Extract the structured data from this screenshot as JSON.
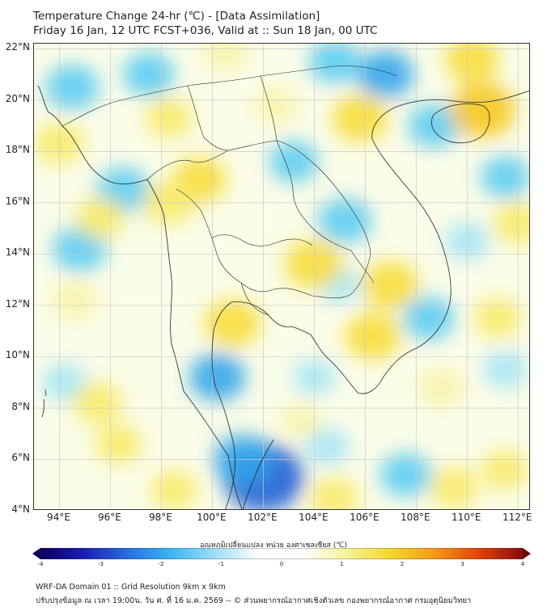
{
  "title_line1": "Temperature Change 24-hr (℃) - [Data Assimilation]",
  "title_line2": "Friday 16 Jan, 12 UTC FCST+036, Valid at :: Sun 18 Jan, 00 UTC",
  "lat_labels": [
    "22°N",
    "20°N",
    "18°N",
    "16°N",
    "14°N",
    "12°N",
    "10°N",
    "8°N",
    "6°N",
    "4°N"
  ],
  "lon_labels": [
    "94°E",
    "96°E",
    "98°E",
    "100°E",
    "102°E",
    "104°E",
    "106°E",
    "108°E",
    "110°E",
    "112°E"
  ],
  "map_extent": {
    "lon_min": 93.0,
    "lon_max": 112.5,
    "lat_min": 4.0,
    "lat_max": 22.2
  },
  "colorbar": {
    "title": "อุณหภูมิเปลี่ยนแปลง หน่วย องศาเซลเซียส (℃)",
    "ticks": [
      "-4",
      "-3",
      "-2",
      "-1",
      "0",
      "1",
      "2",
      "3",
      "4"
    ],
    "min": -4,
    "max": 4,
    "colors": [
      "#08005e",
      "#1a1fb5",
      "#2a6de0",
      "#3fb6f0",
      "#9fe0f7",
      "#ffffff",
      "#ffffff",
      "#f7f29a",
      "#f4d62a",
      "#f29a18",
      "#e2420c",
      "#8a0a0a"
    ]
  },
  "anomalies": [
    {
      "lon": 102.0,
      "lat": 5.3,
      "value": -2.3
    },
    {
      "lon": 101.2,
      "lat": 6.0,
      "value": -1.3
    },
    {
      "lon": 100.2,
      "lat": 9.2,
      "value": -1.2
    },
    {
      "lon": 96.5,
      "lat": 16.5,
      "value": -1.1
    },
    {
      "lon": 94.8,
      "lat": 14.2,
      "value": -1.1
    },
    {
      "lon": 94.5,
      "lat": 20.5,
      "value": -1.1
    },
    {
      "lon": 97.5,
      "lat": 21.0,
      "value": -1.0
    },
    {
      "lon": 106.8,
      "lat": 21.0,
      "value": -1.2
    },
    {
      "lon": 104.8,
      "lat": 21.5,
      "value": -1.0
    },
    {
      "lon": 105.2,
      "lat": 15.3,
      "value": -1.1
    },
    {
      "lon": 103.2,
      "lat": 17.6,
      "value": -0.9
    },
    {
      "lon": 108.7,
      "lat": 19.0,
      "value": -1.0
    },
    {
      "lon": 111.5,
      "lat": 17.0,
      "value": -0.9
    },
    {
      "lon": 108.5,
      "lat": 11.5,
      "value": -1.0
    },
    {
      "lon": 110.0,
      "lat": 14.5,
      "value": -0.7
    },
    {
      "lon": 107.6,
      "lat": 5.4,
      "value": -1.0
    },
    {
      "lon": 104.0,
      "lat": 9.2,
      "value": -0.6
    },
    {
      "lon": 94.2,
      "lat": 9.0,
      "value": -0.7
    },
    {
      "lon": 104.5,
      "lat": 6.5,
      "value": -0.7
    },
    {
      "lon": 111.5,
      "lat": 9.5,
      "value": -0.7
    },
    {
      "lon": 105.0,
      "lat": 12.8,
      "value": -0.6
    },
    {
      "lon": 110.6,
      "lat": 19.6,
      "value": 1.6
    },
    {
      "lon": 106.3,
      "lat": 10.8,
      "value": 1.2
    },
    {
      "lon": 104.0,
      "lat": 13.6,
      "value": 1.3
    },
    {
      "lon": 107.0,
      "lat": 12.8,
      "value": 1.2
    },
    {
      "lon": 100.8,
      "lat": 11.3,
      "value": 1.2
    },
    {
      "lon": 99.5,
      "lat": 16.9,
      "value": 1.1
    },
    {
      "lon": 98.3,
      "lat": 16.0,
      "value": 1.0
    },
    {
      "lon": 105.8,
      "lat": 19.3,
      "value": 1.2
    },
    {
      "lon": 110.2,
      "lat": 21.6,
      "value": 1.1
    },
    {
      "lon": 95.6,
      "lat": 15.4,
      "value": 0.9
    },
    {
      "lon": 94.0,
      "lat": 18.3,
      "value": 0.9
    },
    {
      "lon": 95.5,
      "lat": 8.2,
      "value": 0.9
    },
    {
      "lon": 96.3,
      "lat": 6.6,
      "value": 0.8
    },
    {
      "lon": 98.5,
      "lat": 4.8,
      "value": 0.8
    },
    {
      "lon": 104.8,
      "lat": 4.5,
      "value": 0.9
    },
    {
      "lon": 109.5,
      "lat": 4.9,
      "value": 0.9
    },
    {
      "lon": 111.5,
      "lat": 5.6,
      "value": 0.8
    },
    {
      "lon": 112.0,
      "lat": 15.2,
      "value": 0.9
    },
    {
      "lon": 111.2,
      "lat": 11.5,
      "value": 0.8
    },
    {
      "lon": 94.6,
      "lat": 12.2,
      "value": 0.7
    },
    {
      "lon": 98.3,
      "lat": 19.3,
      "value": 0.8
    },
    {
      "lon": 109.0,
      "lat": 8.8,
      "value": 0.7
    },
    {
      "lon": 100.5,
      "lat": 21.9,
      "value": 0.7
    },
    {
      "lon": 102.5,
      "lat": 19.8,
      "value": 0.6
    },
    {
      "lon": 103.5,
      "lat": 7.5,
      "value": 0.5
    }
  ],
  "footer_line1": "WRF-DA Domain 01 :: Grid Resolution 9km x 9km",
  "footer_line2": "ปรับปรุงข้อมูล ณ เวลา 19:00น. วัน ศ. ที่ 16 ม.ค. 2569 -- © ส่วนพยากรณ์อากาศเชิงตัวเลข กองพยากรณ์อากาศ กรมอุตุนิยมวิทยา"
}
